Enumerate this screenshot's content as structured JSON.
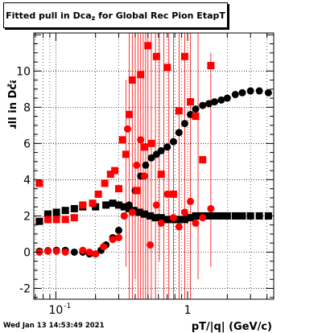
{
  "title": {
    "pre": "Fitted pull in Dca",
    "sub": "z",
    "post": " for Global Rec Pion EtapT"
  },
  "timestamp": "Wed Jan 13 14:53:49 2021",
  "colors": {
    "series_black": "#000000",
    "series_red": "#ff0000",
    "grid": "#000000"
  },
  "chart_data": {
    "type": "scatter",
    "xlabel": "pT/|q| (GeV/c)",
    "ylabel": "pull in Dca",
    "ylabel_sub": "z",
    "x_scale": "log",
    "xlim": [
      0.068,
      4.5
    ],
    "ylim": [
      -2.6,
      12.1
    ],
    "grid": true,
    "x_ticks_major": [
      {
        "v": 0.1,
        "label": "10",
        "sup": "-1"
      },
      {
        "v": 1,
        "label": "1",
        "sup": ""
      }
    ],
    "x_ticks_minor": [
      0.07,
      0.08,
      0.09,
      0.2,
      0.3,
      0.4,
      0.5,
      0.6,
      0.7,
      0.8,
      0.9,
      2,
      3,
      4
    ],
    "y_ticks_major": [
      -2,
      0,
      2,
      4,
      6,
      8,
      10
    ],
    "series": [
      {
        "name": "",
        "color": "#000000",
        "marker": "square",
        "points": [
          [
            0.075,
            1.7
          ],
          [
            0.087,
            2.1
          ],
          [
            0.101,
            2.2
          ],
          [
            0.118,
            2.3
          ],
          [
            0.138,
            2.4
          ],
          [
            0.16,
            2.5
          ],
          [
            0.2,
            2.5
          ],
          [
            0.24,
            2.6
          ],
          [
            0.27,
            2.7
          ],
          [
            0.3,
            2.6
          ],
          [
            0.33,
            2.5
          ],
          [
            0.36,
            2.4
          ],
          [
            0.39,
            2.3
          ],
          [
            0.43,
            2.2
          ],
          [
            0.47,
            2.1
          ],
          [
            0.52,
            2.0
          ],
          [
            0.57,
            1.9
          ],
          [
            0.63,
            1.9
          ],
          [
            0.7,
            1.8
          ],
          [
            0.78,
            1.8
          ],
          [
            0.86,
            1.8
          ],
          [
            0.95,
            1.8
          ],
          [
            1.05,
            1.9
          ],
          [
            1.15,
            2.0
          ],
          [
            1.3,
            2.0
          ],
          [
            1.45,
            2.0
          ],
          [
            1.6,
            2.0
          ],
          [
            1.8,
            2.0
          ],
          [
            2.0,
            2.0
          ],
          [
            2.3,
            2.0
          ],
          [
            2.6,
            2.0
          ],
          [
            3.0,
            2.0
          ],
          [
            3.5,
            2.0
          ],
          [
            4.1,
            2.0
          ]
        ]
      },
      {
        "name": "",
        "color": "#000000",
        "marker": "circle",
        "points": [
          [
            0.075,
            0.05
          ],
          [
            0.087,
            0.08
          ],
          [
            0.101,
            0.1
          ],
          [
            0.118,
            0.1
          ],
          [
            0.138,
            0.0
          ],
          [
            0.16,
            0.0
          ],
          [
            0.18,
            -0.1
          ],
          [
            0.2,
            -0.1
          ],
          [
            0.22,
            0.1
          ],
          [
            0.24,
            0.4
          ],
          [
            0.27,
            0.8
          ],
          [
            0.3,
            1.2
          ],
          [
            0.33,
            2.0
          ],
          [
            0.36,
            2.6
          ],
          [
            0.4,
            3.4
          ],
          [
            0.44,
            4.2
          ],
          [
            0.48,
            4.8
          ],
          [
            0.53,
            5.2
          ],
          [
            0.58,
            5.4
          ],
          [
            0.63,
            5.6
          ],
          [
            0.7,
            5.8
          ],
          [
            0.78,
            6.1
          ],
          [
            0.86,
            6.6
          ],
          [
            0.95,
            7.1
          ],
          [
            1.05,
            7.6
          ],
          [
            1.15,
            7.9
          ],
          [
            1.3,
            8.1
          ],
          [
            1.45,
            8.2
          ],
          [
            1.6,
            8.3
          ],
          [
            1.8,
            8.4
          ],
          [
            2.0,
            8.5
          ],
          [
            2.3,
            8.7
          ],
          [
            2.6,
            8.8
          ],
          [
            3.0,
            8.9
          ],
          [
            3.5,
            8.9
          ],
          [
            4.1,
            8.8
          ]
        ]
      },
      {
        "name": "",
        "color": "#ff0000",
        "marker": "square",
        "points": [
          [
            0.075,
            3.8
          ],
          [
            0.087,
            1.8
          ],
          [
            0.101,
            1.8
          ],
          [
            0.118,
            1.8
          ],
          [
            0.138,
            1.9
          ],
          [
            0.16,
            2.6
          ],
          [
            0.19,
            2.7
          ],
          [
            0.21,
            3.2
          ],
          [
            0.235,
            3.8
          ],
          [
            0.26,
            4.3
          ],
          [
            0.28,
            4.5
          ],
          [
            0.3,
            3.5
          ],
          [
            0.32,
            6.2
          ],
          [
            0.34,
            5.4
          ],
          [
            0.36,
            7.6
          ],
          [
            0.38,
            9.5
          ],
          [
            0.41,
            3.4
          ],
          [
            0.44,
            9.8
          ],
          [
            0.47,
            5.8
          ],
          [
            0.5,
            11.4
          ],
          [
            0.53,
            6.0
          ],
          [
            0.58,
            10.8
          ],
          [
            0.63,
            4.3
          ],
          [
            0.7,
            10.2
          ],
          [
            0.78,
            3.2
          ],
          [
            0.86,
            7.8
          ],
          [
            0.95,
            10.8
          ],
          [
            1.05,
            8.3
          ],
          [
            1.15,
            7.5
          ],
          [
            1.3,
            5.1
          ],
          [
            1.5,
            10.3
          ]
        ]
      },
      {
        "name": "",
        "color": "#ff0000",
        "marker": "circle",
        "points": [
          [
            0.075,
            0.0
          ],
          [
            0.087,
            0.05
          ],
          [
            0.101,
            0.05
          ],
          [
            0.118,
            0.0
          ],
          [
            0.16,
            0.1
          ],
          [
            0.18,
            0.0
          ],
          [
            0.2,
            -0.1
          ],
          [
            0.23,
            0.3
          ],
          [
            0.27,
            0.7
          ],
          [
            0.3,
            0.8
          ],
          [
            0.33,
            2.0
          ],
          [
            0.35,
            6.8
          ],
          [
            0.38,
            2.2
          ],
          [
            0.41,
            4.8
          ],
          [
            0.44,
            6.2
          ],
          [
            0.47,
            4.2
          ],
          [
            0.52,
            0.4
          ],
          [
            0.58,
            2.6
          ],
          [
            0.63,
            1.6
          ],
          [
            0.7,
            3.2
          ],
          [
            0.78,
            1.9
          ],
          [
            0.86,
            1.4
          ],
          [
            0.95,
            2.2
          ],
          [
            1.05,
            2.8
          ],
          [
            1.15,
            1.6
          ],
          [
            1.3,
            1.9
          ],
          [
            1.5,
            2.4
          ]
        ]
      }
    ],
    "error_bars": [
      {
        "x": 0.34,
        "lo": -0.8,
        "hi": 9.5
      },
      {
        "x": 0.36,
        "lo": -2.6,
        "hi": 12.1
      },
      {
        "x": 0.38,
        "lo": -2.6,
        "hi": 12.1
      },
      {
        "x": 0.4,
        "lo": -1.5,
        "hi": 12.1
      },
      {
        "x": 0.42,
        "lo": -2.6,
        "hi": 12.1
      },
      {
        "x": 0.44,
        "lo": -2.6,
        "hi": 12.1
      },
      {
        "x": 0.46,
        "lo": -2.6,
        "hi": 12.1
      },
      {
        "x": 0.48,
        "lo": -2.6,
        "hi": 12.1
      },
      {
        "x": 0.5,
        "lo": -2.6,
        "hi": 12.1
      },
      {
        "x": 0.53,
        "lo": -2.6,
        "hi": 12.1
      },
      {
        "x": 0.57,
        "lo": -2.6,
        "hi": 12.1
      },
      {
        "x": 0.61,
        "lo": -0.5,
        "hi": 12.1
      },
      {
        "x": 0.66,
        "lo": -2.6,
        "hi": 12.1
      },
      {
        "x": 0.72,
        "lo": -2.6,
        "hi": 12.1
      },
      {
        "x": 0.78,
        "lo": -2.6,
        "hi": 12.1
      },
      {
        "x": 0.86,
        "lo": -2.6,
        "hi": 12.1
      },
      {
        "x": 0.95,
        "lo": -2.6,
        "hi": 12.1
      },
      {
        "x": 1.05,
        "lo": -2.6,
        "hi": 12.1
      },
      {
        "x": 1.2,
        "lo": -1.5,
        "hi": 12.1
      },
      {
        "x": 1.5,
        "lo": -0.8,
        "hi": 11.0
      }
    ]
  }
}
